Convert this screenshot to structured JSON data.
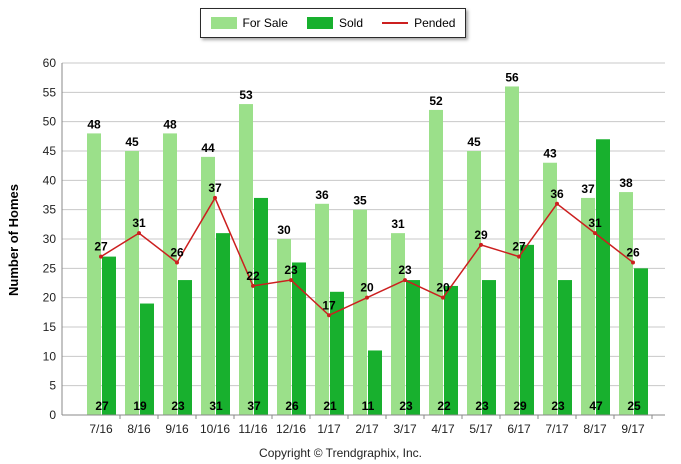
{
  "chart_data": {
    "type": "bar",
    "ylabel": "Number of Homes",
    "ylim": [
      0,
      60
    ],
    "yticks": [
      0,
      5,
      10,
      15,
      20,
      25,
      30,
      35,
      40,
      45,
      50,
      55,
      60
    ],
    "categories": [
      "7/16",
      "8/16",
      "9/16",
      "10/16",
      "11/16",
      "12/16",
      "1/17",
      "2/17",
      "3/17",
      "4/17",
      "5/17",
      "6/17",
      "7/17",
      "8/17",
      "9/17"
    ],
    "series": [
      {
        "name": "For Sale",
        "kind": "bar",
        "color": "#9be08a",
        "values": [
          48,
          45,
          48,
          44,
          53,
          30,
          36,
          35,
          31,
          52,
          45,
          56,
          43,
          37,
          38
        ]
      },
      {
        "name": "Sold",
        "kind": "bar",
        "color": "#18b02e",
        "values": [
          27,
          19,
          23,
          31,
          37,
          26,
          21,
          11,
          23,
          22,
          23,
          29,
          23,
          47,
          25
        ]
      },
      {
        "name": "Pended",
        "kind": "line",
        "color": "#cc1f1f",
        "values": [
          27,
          31,
          26,
          37,
          22,
          23,
          17,
          20,
          23,
          20,
          29,
          27,
          36,
          31,
          26
        ]
      }
    ],
    "legend_position": "top-center",
    "grid": true
  },
  "copyright": "Copyright © Trendgraphix, Inc."
}
